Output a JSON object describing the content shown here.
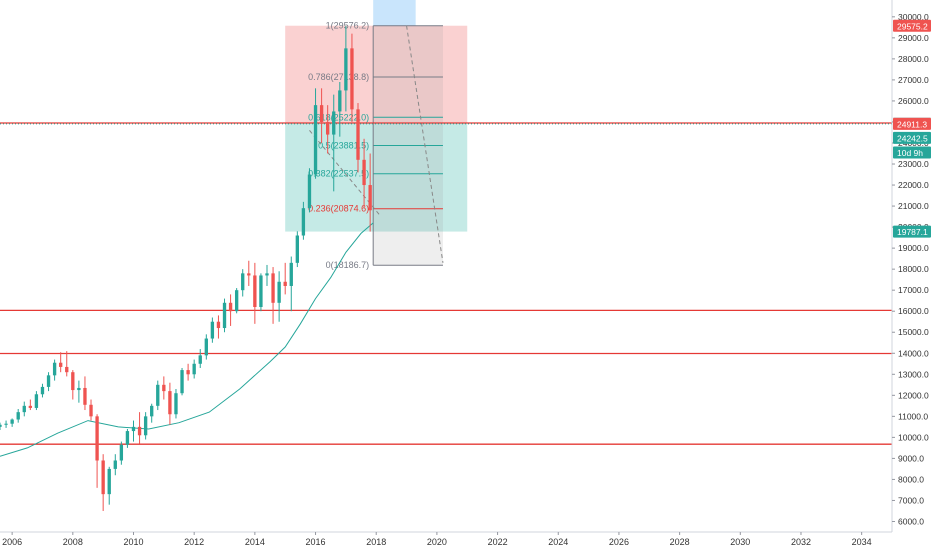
{
  "chart_data": {
    "type": "candlestick",
    "x_axis": {
      "range": [
        2005.6,
        2035.0
      ],
      "ticks": [
        "2006",
        "2008",
        "2010",
        "2012",
        "2014",
        "2016",
        "2018",
        "2020",
        "2022",
        "2024",
        "2026",
        "2028",
        "2030",
        "2032",
        "2034"
      ]
    },
    "y_axis": {
      "range": [
        5500,
        30800
      ],
      "ticks": [
        "6000.0",
        "7000.0",
        "8000.0",
        "9000.0",
        "10000.0",
        "11000.0",
        "12000.0",
        "13000.0",
        "14000.0",
        "15000.0",
        "16000.0",
        "17000.0",
        "18000.0",
        "19000.0",
        "20000.0",
        "21000.0",
        "22000.0",
        "23000.0",
        "24000.0",
        "25000.0",
        "26000.0",
        "27000.0",
        "28000.0",
        "29000.0",
        "30000.0"
      ]
    },
    "colors": {
      "up": "#26a69a",
      "down": "#ef5350",
      "ma": "#26a69a",
      "hline": "#e53935",
      "fib_upper": "#f8c2c2",
      "fib_lower": "#b2e3dd",
      "projection": "#bbdefb"
    },
    "series": [
      {
        "kind": "ohlc",
        "points": [
          [
            2005.6,
            10500,
            10700,
            10350,
            10600
          ],
          [
            2005.8,
            10600,
            10800,
            10450,
            10650
          ],
          [
            2006.0,
            10650,
            10900,
            10500,
            10850
          ],
          [
            2006.2,
            10850,
            11350,
            10700,
            11200
          ],
          [
            2006.4,
            11200,
            11700,
            11000,
            11500
          ],
          [
            2006.6,
            11500,
            11800,
            11300,
            11400
          ],
          [
            2006.8,
            11400,
            12200,
            11300,
            12050
          ],
          [
            2007.0,
            12050,
            12550,
            11900,
            12400
          ],
          [
            2007.2,
            12400,
            13100,
            12200,
            12950
          ],
          [
            2007.4,
            12950,
            13700,
            12700,
            13550
          ],
          [
            2007.6,
            13550,
            14050,
            13100,
            13350
          ],
          [
            2007.8,
            13350,
            14100,
            12900,
            13100
          ],
          [
            2008.0,
            13100,
            13200,
            11800,
            12250
          ],
          [
            2008.2,
            12250,
            12700,
            11650,
            12350
          ],
          [
            2008.4,
            12350,
            12900,
            11300,
            11550
          ],
          [
            2008.6,
            11550,
            11800,
            10800,
            11000
          ],
          [
            2008.8,
            11000,
            11100,
            7600,
            8900
          ],
          [
            2009.0,
            8900,
            9200,
            6500,
            7300
          ],
          [
            2009.2,
            7300,
            8600,
            6800,
            8500
          ],
          [
            2009.4,
            8500,
            9200,
            8200,
            8900
          ],
          [
            2009.6,
            8900,
            9800,
            8700,
            9650
          ],
          [
            2009.8,
            9650,
            10400,
            9500,
            10300
          ],
          [
            2010.0,
            10300,
            10800,
            9800,
            10500
          ],
          [
            2010.2,
            10500,
            11200,
            9700,
            10100
          ],
          [
            2010.4,
            10100,
            11200,
            9900,
            11000
          ],
          [
            2010.6,
            11000,
            11600,
            10700,
            11500
          ],
          [
            2010.8,
            11500,
            12700,
            11300,
            12500
          ],
          [
            2011.0,
            12500,
            12900,
            11800,
            12200
          ],
          [
            2011.2,
            12200,
            12600,
            10600,
            11100
          ],
          [
            2011.4,
            11100,
            12300,
            10900,
            12100
          ],
          [
            2011.6,
            12100,
            13300,
            12000,
            13200
          ],
          [
            2011.8,
            13200,
            13500,
            12700,
            13000
          ],
          [
            2012.0,
            13000,
            13700,
            12800,
            13500
          ],
          [
            2012.2,
            13500,
            14200,
            13300,
            13900
          ],
          [
            2012.4,
            13900,
            14900,
            13700,
            14700
          ],
          [
            2012.6,
            14700,
            15700,
            14500,
            15500
          ],
          [
            2012.8,
            15500,
            15800,
            14700,
            15200
          ],
          [
            2013.0,
            15200,
            16600,
            15000,
            16400
          ],
          [
            2013.2,
            16400,
            16800,
            15300,
            16000
          ],
          [
            2013.4,
            16000,
            17100,
            15900,
            17000
          ],
          [
            2013.6,
            17000,
            18000,
            16700,
            17800
          ],
          [
            2013.8,
            17800,
            18400,
            17200,
            17700
          ],
          [
            2014.0,
            17700,
            18300,
            15400,
            16200
          ],
          [
            2014.2,
            16200,
            17800,
            16000,
            17700
          ],
          [
            2014.4,
            17700,
            18200,
            17200,
            17800
          ],
          [
            2014.6,
            17800,
            18100,
            15400,
            16400
          ],
          [
            2014.8,
            16400,
            17900,
            15500,
            17400
          ],
          [
            2015.0,
            17400,
            18300,
            16800,
            17200
          ],
          [
            2015.2,
            17200,
            18600,
            16000,
            18300
          ],
          [
            2015.4,
            18300,
            19800,
            18100,
            19600
          ],
          [
            2015.6,
            19600,
            21200,
            19400,
            20900
          ],
          [
            2015.8,
            20900,
            22800,
            20700,
            22500
          ],
          [
            2016.0,
            22500,
            26600,
            22300,
            25800
          ],
          [
            2016.2,
            25800,
            26600,
            24000,
            25000
          ],
          [
            2016.4,
            25000,
            25800,
            23500,
            24400
          ],
          [
            2016.6,
            24400,
            26300,
            21700,
            25500
          ],
          [
            2016.8,
            25500,
            26900,
            24300,
            26500
          ],
          [
            2017.0,
            26500,
            29568,
            25500,
            28500
          ],
          [
            2017.2,
            28500,
            29200,
            25000,
            25600
          ],
          [
            2017.4,
            25600,
            25900,
            22600,
            23200
          ],
          [
            2017.6,
            23200,
            24200,
            20900,
            22000
          ],
          [
            2017.8,
            22000,
            23500,
            19787,
            20800
          ]
        ]
      }
    ],
    "ma_line": [
      [
        2005.6,
        9100
      ],
      [
        2006.5,
        9500
      ],
      [
        2007.5,
        10200
      ],
      [
        2008.5,
        10800
      ],
      [
        2009.5,
        10500
      ],
      [
        2010.5,
        10400
      ],
      [
        2011.5,
        10700
      ],
      [
        2012.5,
        11200
      ],
      [
        2013.5,
        12300
      ],
      [
        2014.5,
        13600
      ],
      [
        2015.0,
        14300
      ],
      [
        2015.5,
        15400
      ],
      [
        2016.0,
        16600
      ],
      [
        2016.5,
        17600
      ],
      [
        2017.0,
        18800
      ],
      [
        2017.5,
        19700
      ],
      [
        2017.9,
        20200
      ]
    ],
    "horizontal_lines": [
      {
        "value": 24949.2,
        "label": "24949.2",
        "style": "solid"
      },
      {
        "value": 24911.3,
        "label": "24911.3",
        "style": "dotted"
      },
      {
        "value": 16039.3,
        "label": "16039.3",
        "style": "solid"
      },
      {
        "value": 13988.6,
        "label": "13988.6",
        "style": "solid"
      },
      {
        "value": 9675.0,
        "label": "9675.0",
        "style": "solid"
      }
    ],
    "price_tags": [
      {
        "value": 29575.2,
        "label": "29575.2",
        "color": "#ef5350"
      },
      {
        "value": 24949.2,
        "label": "24949.2",
        "color": "#e0e0e0",
        "text_color": "#333333"
      },
      {
        "value": 24911.3,
        "label": "24911.3",
        "color": "#ef5350"
      },
      {
        "value": 24242.5,
        "label": "24242.5",
        "color": "#26a69a"
      },
      {
        "value": 23550,
        "label": "10d 9h",
        "color": "#26a69a"
      },
      {
        "value": 19787.1,
        "label": "19787.1",
        "color": "#26a69a"
      }
    ],
    "fib_levels": [
      {
        "ratio": "1",
        "value": 29576.2,
        "label": "1(29576.2)"
      },
      {
        "ratio": "0.786",
        "value": 27138.8,
        "label": "0.786(27138.8)"
      },
      {
        "ratio": "0.618",
        "value": 25222,
        "label": "0.618(25222.0)"
      },
      {
        "ratio": "0.5",
        "value": 23881.5,
        "label": "0.5(23881.5)"
      },
      {
        "ratio": "0.382",
        "value": 22537.5,
        "label": "0.382(22537.5)"
      },
      {
        "ratio": "0.236",
        "value": 20874.6,
        "label": "0.236(20874.6)"
      },
      {
        "ratio": "0",
        "value": 18186.7,
        "label": "0(18186.7)"
      }
    ],
    "position_box": {
      "x_start": 2015.0,
      "x_end": 2021.0,
      "top": 29576.2,
      "entry": 24949.2,
      "bottom": 19787.1
    },
    "projection_box": {
      "x_start": 2017.9,
      "x_end": 2019.3,
      "top": 30800,
      "bottom": 29576.2
    }
  }
}
